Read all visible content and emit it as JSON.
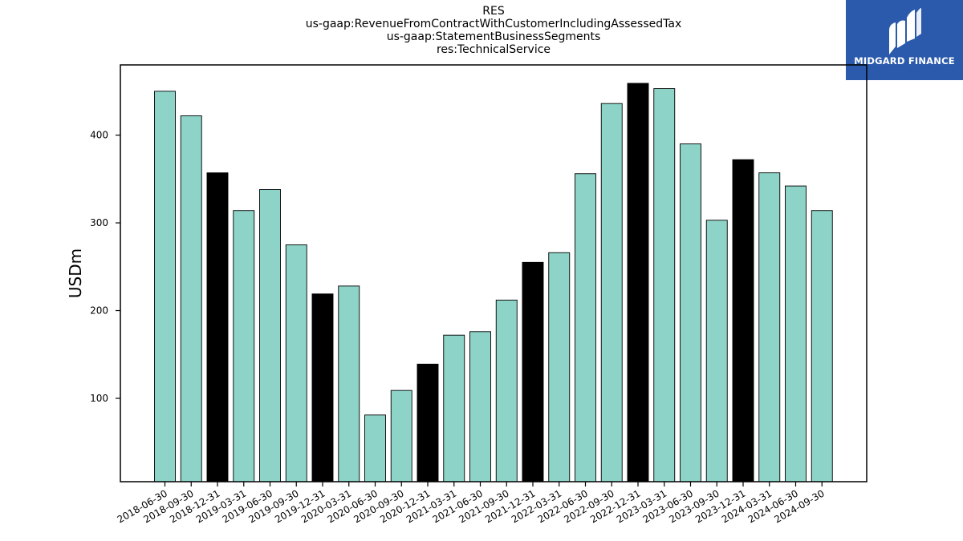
{
  "title_lines": [
    "RES",
    "us-gaap:RevenueFromContractWithCustomerIncludingAssessedTax",
    "us-gaap:StatementBusinessSegments",
    "res:TechnicalService"
  ],
  "logo": {
    "text": "MIDGARD FINANCE",
    "background": "#2b5aad"
  },
  "colors": {
    "regular_bar": "#8dd3c7",
    "quarter_end_q4_bar": "#000000",
    "edge": "#000000"
  },
  "chart_data": {
    "type": "bar",
    "ylabel": "USDm",
    "ylim": [
      5,
      480
    ],
    "yticks": [
      100,
      200,
      300,
      400
    ],
    "grid": false,
    "categories": [
      "2018-06-30",
      "2018-09-30",
      "2018-12-31",
      "2019-03-31",
      "2019-06-30",
      "2019-09-30",
      "2019-12-31",
      "2020-03-31",
      "2020-06-30",
      "2020-09-30",
      "2020-12-31",
      "2021-03-31",
      "2021-06-30",
      "2021-09-30",
      "2021-12-31",
      "2022-03-31",
      "2022-06-30",
      "2022-09-30",
      "2022-12-31",
      "2023-03-31",
      "2023-06-30",
      "2023-09-30",
      "2023-12-31",
      "2024-03-31",
      "2024-06-30",
      "2024-09-30"
    ],
    "values": [
      450,
      422,
      357,
      314,
      338,
      275,
      219,
      228,
      81,
      109,
      139,
      172,
      176,
      212,
      255,
      266,
      356,
      436,
      459,
      453,
      390,
      303,
      372,
      357,
      342,
      314
    ],
    "highlighted": [
      false,
      false,
      true,
      false,
      false,
      false,
      true,
      false,
      false,
      false,
      true,
      false,
      false,
      false,
      true,
      false,
      false,
      false,
      true,
      false,
      false,
      false,
      true,
      false,
      false,
      false
    ]
  }
}
